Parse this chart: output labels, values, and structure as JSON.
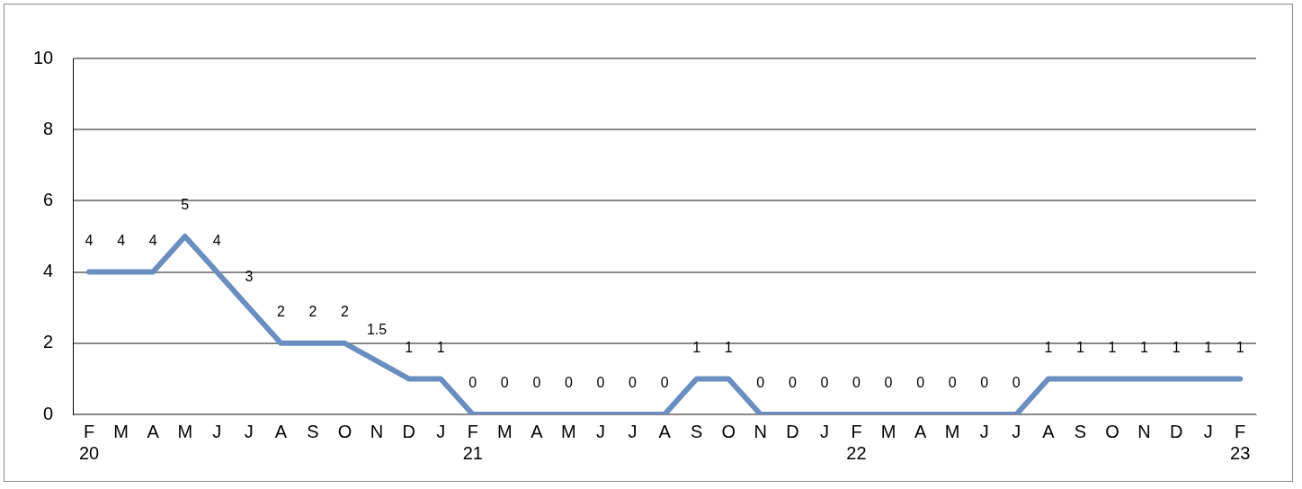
{
  "chart_data": {
    "type": "line",
    "categories": [
      "F\n20",
      "M",
      "A",
      "M",
      "J",
      "J",
      "A",
      "S",
      "O",
      "N",
      "D",
      "J",
      "F\n21",
      "M",
      "A",
      "M",
      "J",
      "J",
      "A",
      "S",
      "O",
      "N",
      "D",
      "J",
      "F\n22",
      "M",
      "A",
      "M",
      "J",
      "J",
      "A",
      "S",
      "O",
      "N",
      "D",
      "J",
      "F\n23"
    ],
    "series": [
      {
        "color": "#6a8ebf",
        "values": [
          4,
          4,
          4,
          5,
          4,
          3,
          2,
          2,
          2,
          1.5,
          1,
          1,
          0,
          0,
          0,
          0,
          0,
          0,
          0,
          1,
          1,
          0,
          0,
          0,
          0,
          0,
          0,
          0,
          0,
          0,
          1,
          1,
          1,
          1,
          1,
          1,
          1
        ]
      }
    ],
    "ylim": [
      0,
      10
    ],
    "yticks": [
      0,
      2,
      4,
      6,
      8,
      10
    ],
    "grid": "y",
    "legend": false,
    "marker": "none",
    "line_style": "solid",
    "data_labels": true
  }
}
